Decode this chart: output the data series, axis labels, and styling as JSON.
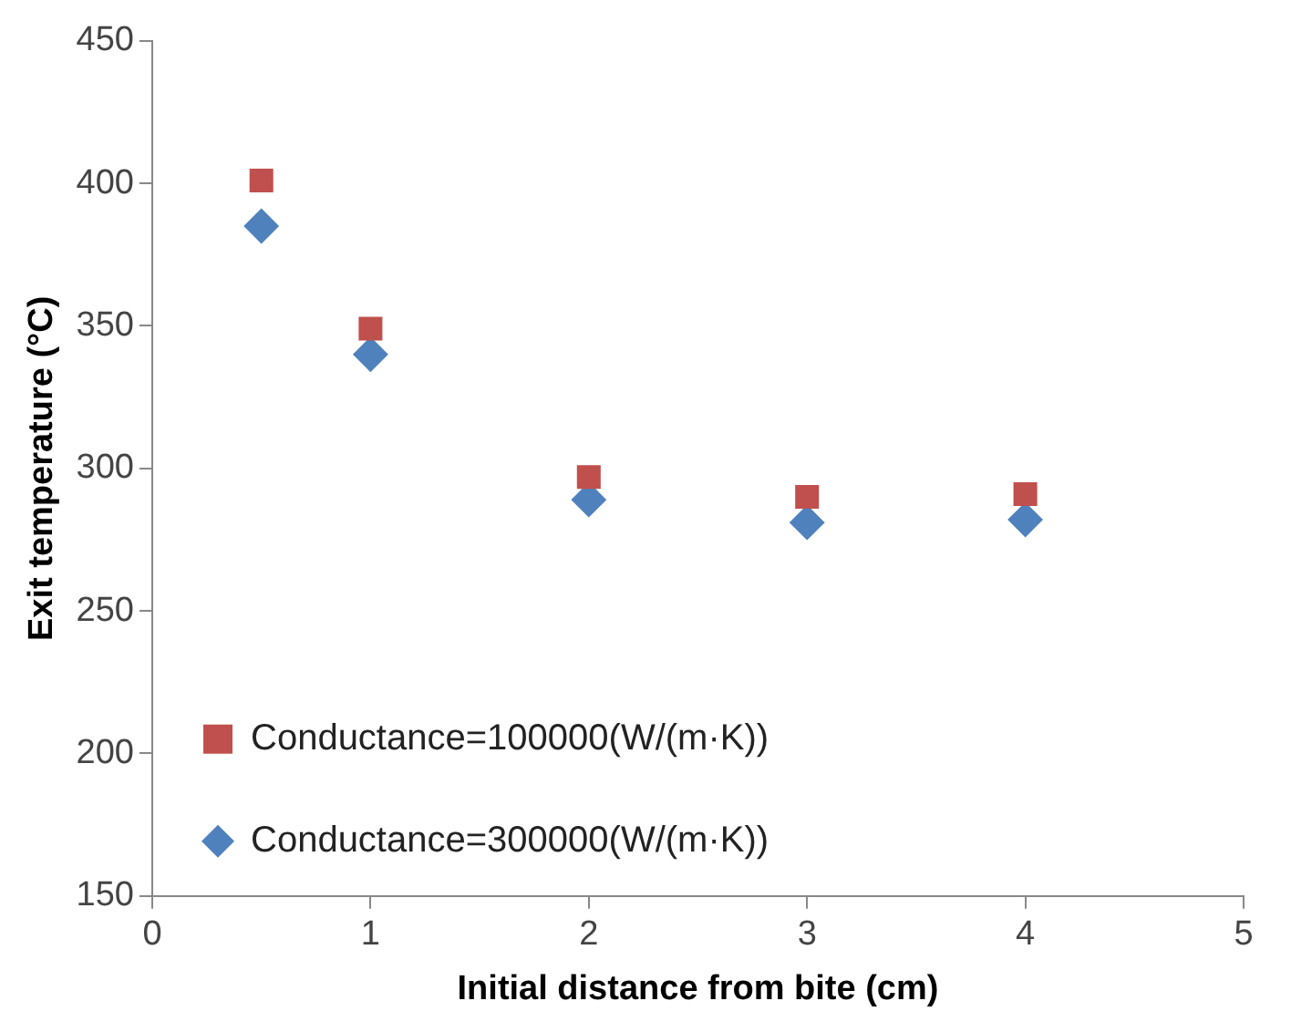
{
  "chart_data": {
    "type": "scatter",
    "xlabel": "Initial distance from bite (cm)",
    "ylabel": "Exit temperature (°C)",
    "xlim": [
      0,
      5
    ],
    "xticks": [
      0,
      1,
      2,
      3,
      4,
      5
    ],
    "ylim": [
      150,
      450
    ],
    "yticks": [
      150,
      200,
      250,
      300,
      350,
      400,
      450
    ],
    "grid": false,
    "legend": "bottom left",
    "series": [
      {
        "name": "Conductance=100000(W/(m·K))",
        "color": "#c0504d",
        "marker": "square",
        "x": [
          0.5,
          1,
          2,
          3,
          4
        ],
        "values": [
          401,
          349,
          297,
          290,
          291
        ]
      },
      {
        "name": "Conductance=300000(W/(m·K))",
        "color": "#4f81bd",
        "marker": "diamond",
        "x": [
          0.5,
          1,
          2,
          3,
          4
        ],
        "values": [
          385,
          340,
          289,
          281,
          282
        ]
      }
    ]
  }
}
